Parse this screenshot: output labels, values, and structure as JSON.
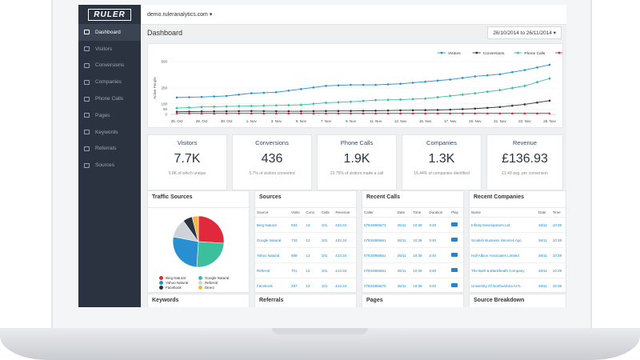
{
  "app": {
    "logo": "RULER",
    "domain": "demo.ruleranalytics.com ▾"
  },
  "sidebar": {
    "items": [
      {
        "label": "Dashboard",
        "icon": "dashboard-icon",
        "active": true
      },
      {
        "label": "Visitors",
        "icon": "visitors-icon"
      },
      {
        "label": "Conversions",
        "icon": "conversions-icon"
      },
      {
        "label": "Companies",
        "icon": "companies-icon"
      },
      {
        "label": "Phone Calls",
        "icon": "phone-icon"
      },
      {
        "label": "Pages",
        "icon": "pages-icon"
      },
      {
        "label": "Keywords",
        "icon": "keywords-icon"
      },
      {
        "label": "Referrals",
        "icon": "referrals-icon"
      },
      {
        "label": "Sources",
        "icon": "sources-icon"
      }
    ]
  },
  "header": {
    "title": "Dashboard",
    "date_range": "26/10/2014 to 26/11/2014 ▾"
  },
  "chart_data": {
    "type": "line",
    "ylabel": "Active People",
    "ylim": [
      0,
      500
    ],
    "yticks": [
      "500",
      "250",
      "100",
      "50",
      "0"
    ],
    "categories": [
      "26. Oct",
      "28. Oct",
      "30. Oct",
      "1. Nov",
      "3. Nov",
      "5. Nov",
      "7. Nov",
      "9. Nov",
      "11. Nov",
      "13. Nov",
      "15. Nov",
      "17. Nov",
      "19. Nov",
      "21. Nov",
      "23. Nov",
      "25. Nov"
    ],
    "series": [
      {
        "name": "Visitors",
        "color": "#2a8fd1",
        "values": [
          160,
          165,
          175,
          200,
          210,
          240,
          270,
          280,
          280,
          290,
          310,
          330,
          360,
          380,
          420,
          470
        ]
      },
      {
        "name": "Conversions",
        "color": "#333333",
        "values": [
          25,
          28,
          30,
          32,
          30,
          30,
          32,
          33,
          35,
          38,
          40,
          45,
          55,
          70,
          95,
          130
        ]
      },
      {
        "name": "Phone Calls",
        "color": "#3bbf9d",
        "values": [
          60,
          70,
          75,
          80,
          85,
          90,
          110,
          120,
          135,
          140,
          150,
          175,
          200,
          230,
          270,
          340
        ]
      },
      {
        "name": "Companies",
        "color": "#e0293a",
        "values": [
          12,
          12,
          12,
          12,
          12,
          12,
          12,
          12,
          12,
          12,
          12,
          12,
          12,
          12,
          12,
          12
        ]
      }
    ]
  },
  "stats": [
    {
      "title": "Visitors",
      "value": "7.7K",
      "sub": "5.8K of which unique"
    },
    {
      "title": "Conversions",
      "value": "436",
      "sub": "5.7% of visitors converted"
    },
    {
      "title": "Phone Calls",
      "value": "1.9K",
      "sub": "23.75% of visitors made a call"
    },
    {
      "title": "Companies",
      "value": "1.3K",
      "sub": "16.44% of companies identified"
    },
    {
      "title": "Revenue",
      "value": "£136.93",
      "sub": "£1.49 avg. per conversion"
    }
  ],
  "traffic_sources": {
    "title": "Traffic Sources",
    "slices": [
      {
        "name": "Bing Natural",
        "value": 26,
        "color": "#e0293a"
      },
      {
        "name": "Google Natural",
        "value": 25,
        "color": "#3bbf9d"
      },
      {
        "name": "Yahoo Natural",
        "value": 27,
        "color": "#2a8fd1"
      },
      {
        "name": "Referral",
        "value": 12,
        "color": "#cfd3d8"
      },
      {
        "name": "Facebook",
        "value": 6,
        "color": "#2c3340"
      },
      {
        "name": "Direct",
        "value": 4,
        "color": "#f4b73f"
      }
    ]
  },
  "sources": {
    "title": "Sources",
    "columns": [
      "Source",
      "Visits",
      "Conv.",
      "Calls",
      "Revenue"
    ],
    "rows": [
      [
        "Bing Natural",
        "933",
        "13",
        "101",
        "£33.34"
      ],
      [
        "Google Natural",
        "733",
        "13",
        "101",
        "£33.34"
      ],
      [
        "Yahoo Natural",
        "889",
        "13",
        "101",
        "£13.34"
      ],
      [
        "Referral",
        "701",
        "13",
        "101",
        "£13.34"
      ],
      [
        "Facebook",
        "287",
        "13",
        "101",
        "£13.34"
      ],
      [
        "Direct",
        "141",
        "10",
        "14",
        "£1.34"
      ]
    ]
  },
  "recent_calls": {
    "title": "Recent Calls",
    "columns": [
      "Caller",
      "Date",
      "Time",
      "Duration",
      "Play"
    ],
    "rows": [
      [
        "07834965673",
        "26/11",
        "10:39",
        "3:40"
      ],
      [
        "07834965661",
        "26/11",
        "10:39",
        "3:40"
      ],
      [
        "07834965651",
        "26/11",
        "10:39",
        "3:40"
      ],
      [
        "07834965661",
        "26/11",
        "10:39",
        "3:40"
      ],
      [
        "07834965670",
        "26/11",
        "10:39",
        "3:40"
      ],
      [
        "07834965601",
        "26/11",
        "10:39",
        "3:40"
      ]
    ]
  },
  "recent_companies": {
    "title": "Recent Companies",
    "columns": [
      "Name",
      "Date",
      "Time"
    ],
    "rows": [
      [
        "Infinity Development Ltd",
        "26/11",
        "10:39"
      ],
      [
        "Scottish Business Services Agc.",
        "26/11",
        "10:39"
      ],
      [
        "Hall Albion Associates Limited",
        "26/11",
        "10:39"
      ],
      [
        "The Bath & Blackheath Company",
        "26/11",
        "10:39"
      ],
      [
        "University Of Northumbria At N.",
        "26/11",
        "10:39"
      ],
      [
        "SOFTEST LIMITED",
        "26/11",
        "10:39"
      ]
    ]
  },
  "bottom": {
    "keywords": "Keywords",
    "referrals": "Referrals",
    "pages": "Pages",
    "source_breakdown": "Source Breakdown"
  }
}
